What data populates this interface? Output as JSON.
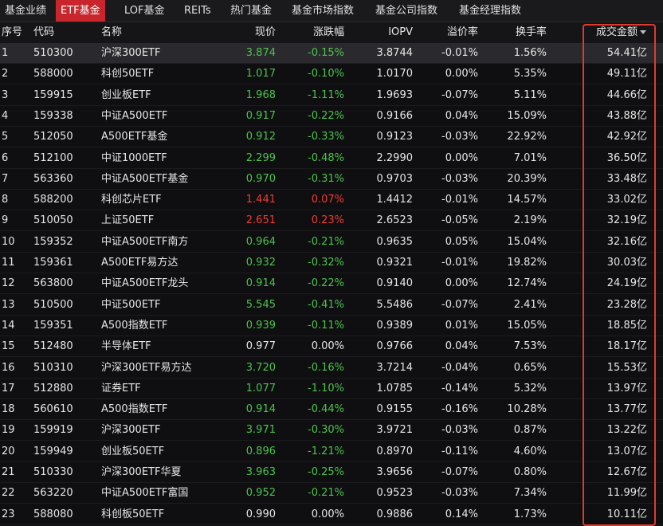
{
  "tabs": [
    "基金业绩",
    "ETF基金",
    "LOF基金",
    "REITs",
    "热门基金",
    "基金市场指数",
    "基金公司指数",
    "基金经理指数"
  ],
  "table": {
    "header": [
      "序号",
      "代码",
      "名称",
      "现价",
      "涨跌幅",
      "IOPV",
      "溢价率",
      "换手率",
      "成交金额"
    ],
    "rows": [
      [
        "1",
        "510300",
        "沪深300ETF",
        "3.874",
        "-0.15%",
        "3.8744",
        "-0.01%",
        "1.56%",
        "54.41亿"
      ],
      [
        "2",
        "588000",
        "科创50ETF",
        "1.017",
        "-0.10%",
        "1.0170",
        "0.00%",
        "5.35%",
        "49.11亿"
      ],
      [
        "3",
        "159915",
        "创业板ETF",
        "1.968",
        "-1.11%",
        "1.9693",
        "-0.07%",
        "5.11%",
        "44.66亿"
      ],
      [
        "4",
        "159338",
        "中证A500ETF",
        "0.917",
        "-0.22%",
        "0.9166",
        "0.04%",
        "15.09%",
        "43.88亿"
      ],
      [
        "5",
        "512050",
        "A500ETF基金",
        "0.912",
        "-0.33%",
        "0.9123",
        "-0.03%",
        "22.92%",
        "42.92亿"
      ],
      [
        "6",
        "512100",
        "中证1000ETF",
        "2.299",
        "-0.48%",
        "2.2990",
        "0.00%",
        "7.01%",
        "36.50亿"
      ],
      [
        "7",
        "563360",
        "中证A500ETF基金",
        "0.970",
        "-0.31%",
        "0.9703",
        "-0.03%",
        "20.39%",
        "33.48亿"
      ],
      [
        "8",
        "588200",
        "科创芯片ETF",
        "1.441",
        "0.07%",
        "1.4412",
        "-0.01%",
        "14.57%",
        "33.02亿"
      ],
      [
        "9",
        "510050",
        "上证50ETF",
        "2.651",
        "0.23%",
        "2.6523",
        "-0.05%",
        "2.19%",
        "32.19亿"
      ],
      [
        "10",
        "159352",
        "中证A500ETF南方",
        "0.964",
        "-0.21%",
        "0.9635",
        "0.05%",
        "15.04%",
        "32.16亿"
      ],
      [
        "11",
        "159361",
        "A500ETF易方达",
        "0.932",
        "-0.32%",
        "0.9321",
        "-0.01%",
        "19.82%",
        "30.03亿"
      ],
      [
        "12",
        "563800",
        "中证A500ETF龙头",
        "0.914",
        "-0.22%",
        "0.9140",
        "0.00%",
        "12.74%",
        "24.19亿"
      ],
      [
        "13",
        "510500",
        "中证500ETF",
        "5.545",
        "-0.41%",
        "5.5486",
        "-0.07%",
        "2.41%",
        "23.28亿"
      ],
      [
        "14",
        "159351",
        "A500指数ETF",
        "0.939",
        "-0.11%",
        "0.9389",
        "0.01%",
        "15.05%",
        "18.85亿"
      ],
      [
        "15",
        "512480",
        "半导体ETF",
        "0.977",
        "0.00%",
        "0.9766",
        "0.04%",
        "7.53%",
        "18.17亿"
      ],
      [
        "16",
        "510310",
        "沪深300ETF易方达",
        "3.720",
        "-0.16%",
        "3.7214",
        "-0.04%",
        "0.65%",
        "15.53亿"
      ],
      [
        "17",
        "512880",
        "证券ETF",
        "1.077",
        "-1.10%",
        "1.0785",
        "-0.14%",
        "5.32%",
        "13.97亿"
      ],
      [
        "18",
        "560610",
        "A500指数ETF",
        "0.914",
        "-0.44%",
        "0.9155",
        "-0.16%",
        "10.28%",
        "13.77亿"
      ],
      [
        "19",
        "159919",
        "沪深300ETF",
        "3.971",
        "-0.30%",
        "3.9721",
        "-0.03%",
        "0.87%",
        "13.22亿"
      ],
      [
        "20",
        "159949",
        "创业板50ETF",
        "0.896",
        "-1.21%",
        "0.8970",
        "-0.11%",
        "4.60%",
        "13.07亿"
      ],
      [
        "21",
        "510330",
        "沪深300ETF华夏",
        "3.963",
        "-0.25%",
        "3.9656",
        "-0.07%",
        "0.80%",
        "12.67亿"
      ],
      [
        "22",
        "563220",
        "中证A500ETF富国",
        "0.952",
        "-0.21%",
        "0.9523",
        "-0.03%",
        "7.34%",
        "11.99亿"
      ],
      [
        "23",
        "588080",
        "科创板50ETF",
        "0.990",
        "0.00%",
        "0.9886",
        "0.14%",
        "1.73%",
        "10.11亿"
      ]
    ]
  }
}
